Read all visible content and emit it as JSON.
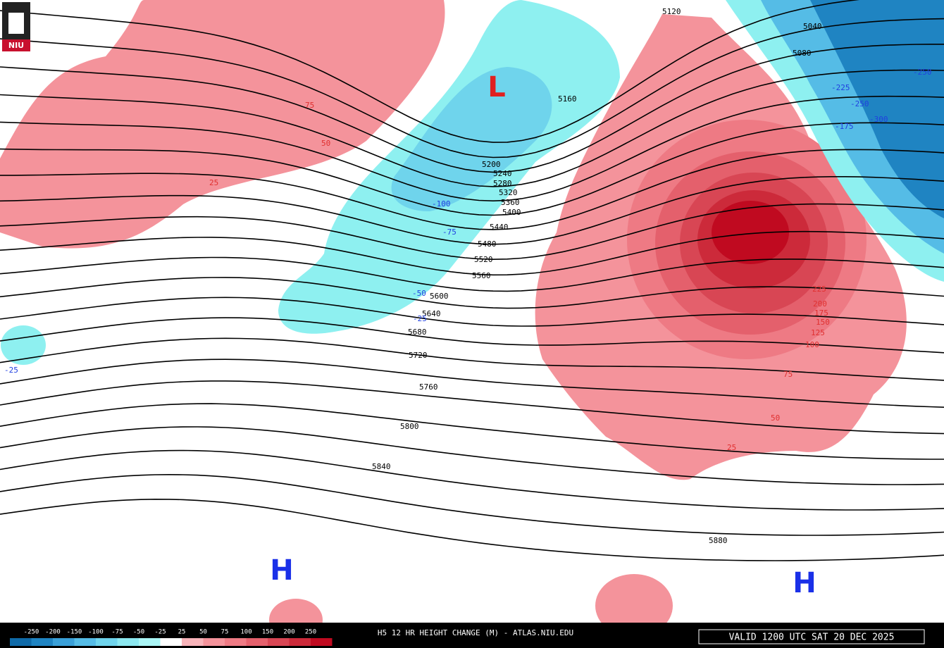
{
  "logo": "NIU",
  "title": "H5 12 HR HEIGHT CHANGE (M) - ATLAS.NIU.EDU",
  "valid_time": "VALID 1200 UTC SAT 20 DEC 2025",
  "pressure_centers": [
    "L",
    "H",
    "H"
  ],
  "heights": [
    5040,
    5080,
    5120,
    5160,
    5200,
    5240,
    5280,
    5320,
    5360,
    5400,
    5440,
    5480,
    5520,
    5560,
    5600,
    5640,
    5680,
    5720,
    5760,
    5800,
    5840,
    5880
  ],
  "height_changes": [
    75,
    50,
    25,
    225,
    200,
    175,
    150,
    125,
    100,
    75,
    50,
    25,
    -100,
    -75,
    -50,
    -25,
    -25,
    -225,
    -250,
    -300,
    -175,
    -250
  ],
  "legend": {
    "labels": [
      -250,
      -200,
      -150,
      -100,
      -75,
      -50,
      -25,
      25,
      50,
      75,
      100,
      150,
      200,
      250
    ],
    "colors": [
      "#0f6aa8",
      "#1f84c2",
      "#3aa0d8",
      "#55bce6",
      "#6fd4ec",
      "#8ce8f0",
      "#aaf6f6",
      "#ffffff",
      "#f8b4ba",
      "#f4939b",
      "#ee7a84",
      "#e4606c",
      "#d84654",
      "#cc2a3a",
      "#c00a20"
    ]
  }
}
